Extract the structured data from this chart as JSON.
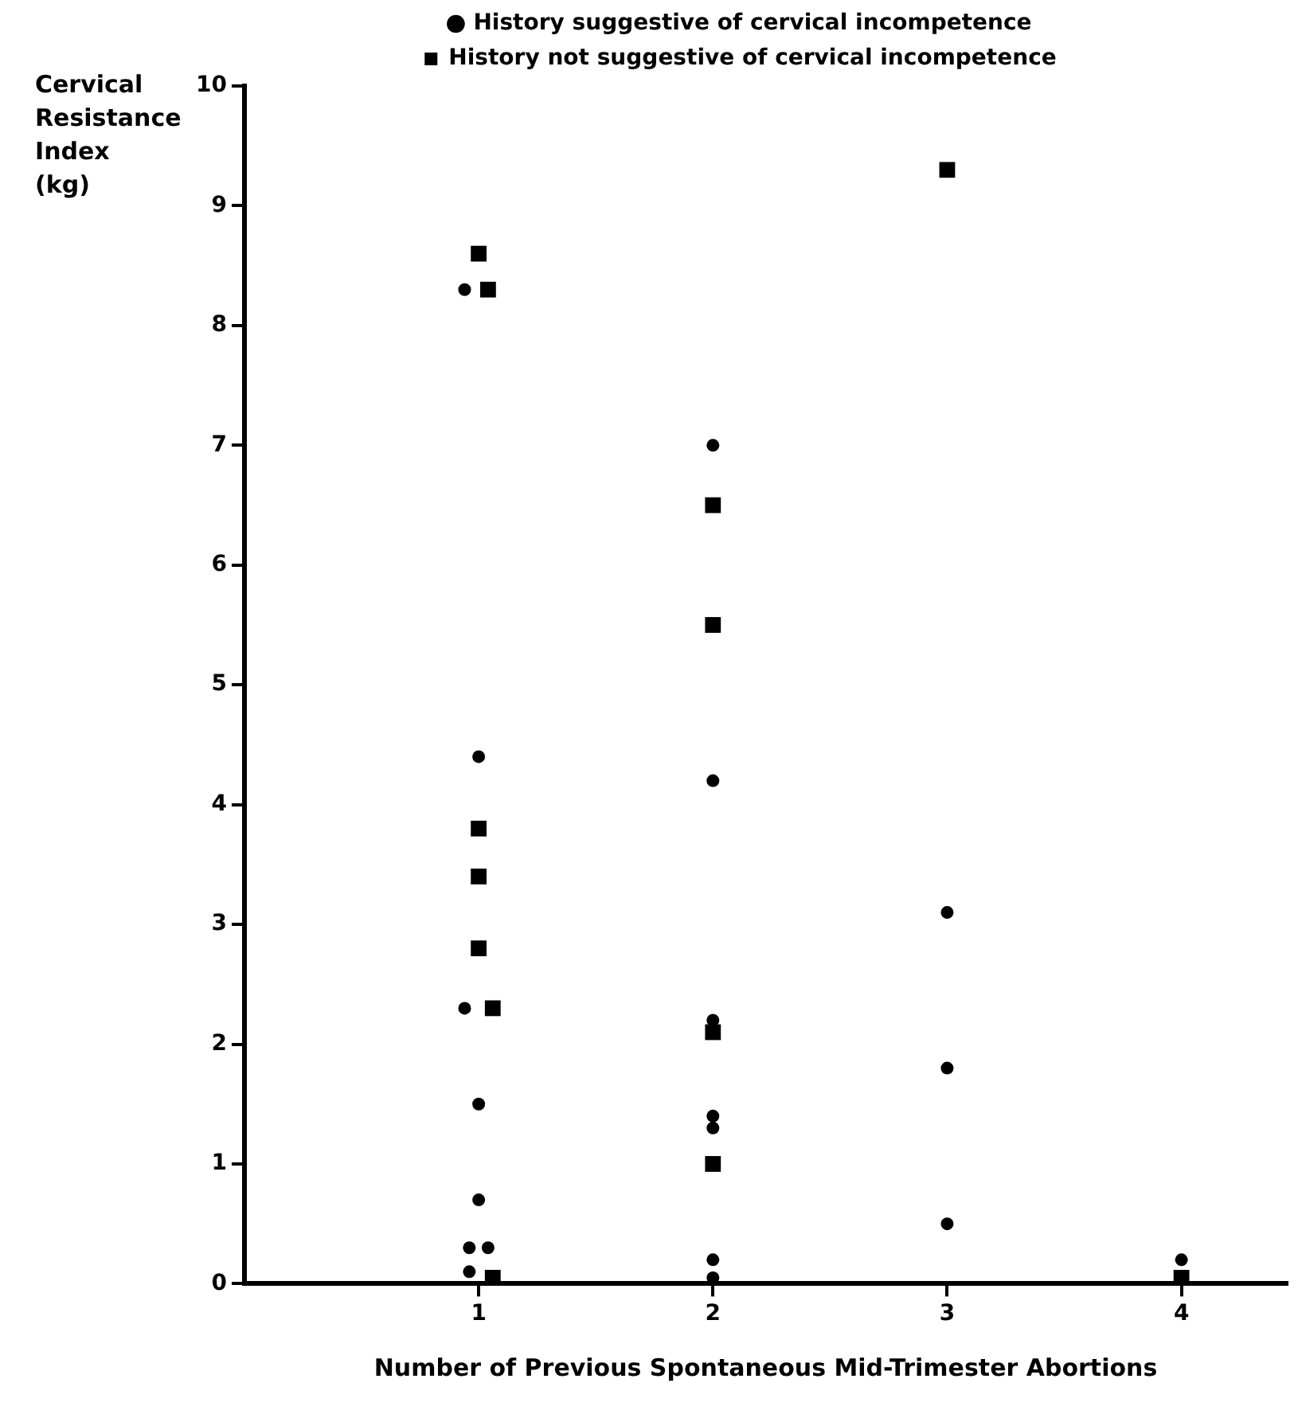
{
  "chart_data": {
    "type": "scatter",
    "xlabel": "Number of Previous Spontaneous Mid-Trimester Abortions",
    "ylabel": "Cervical Resistance Index (kg)",
    "xlim": [
      0,
      4.45
    ],
    "xticks": [
      1,
      2,
      3,
      4
    ],
    "ylim": [
      0,
      10
    ],
    "yticks": [
      0,
      1,
      2,
      3,
      4,
      5,
      6,
      7,
      8,
      9,
      10
    ],
    "grid": false,
    "legend": "top",
    "series": [
      {
        "name": "History suggestive of cervical incompetence",
        "color": "#000000",
        "marker": "circle",
        "x": [
          0.94,
          1,
          0.94,
          1,
          1,
          0.96,
          1.04,
          0.96,
          2,
          2,
          2,
          2,
          2,
          2,
          2,
          3,
          3,
          3,
          4
        ],
        "values": [
          8.3,
          4.4,
          2.3,
          1.5,
          0.7,
          0.3,
          0.3,
          0.1,
          7.0,
          4.2,
          2.2,
          1.4,
          1.3,
          0.2,
          0.05,
          3.1,
          1.8,
          0.5,
          0.2
        ]
      },
      {
        "name": "History not suggestive of cervical incompetence",
        "color": "#000000",
        "marker": "square",
        "x": [
          1,
          1.04,
          1,
          1,
          1,
          1.06,
          1.06,
          2,
          2,
          2,
          2,
          3,
          4
        ],
        "values": [
          8.6,
          8.3,
          3.8,
          3.4,
          2.8,
          2.3,
          0.05,
          6.5,
          5.5,
          2.1,
          1.0,
          9.3,
          0.05
        ]
      }
    ]
  }
}
